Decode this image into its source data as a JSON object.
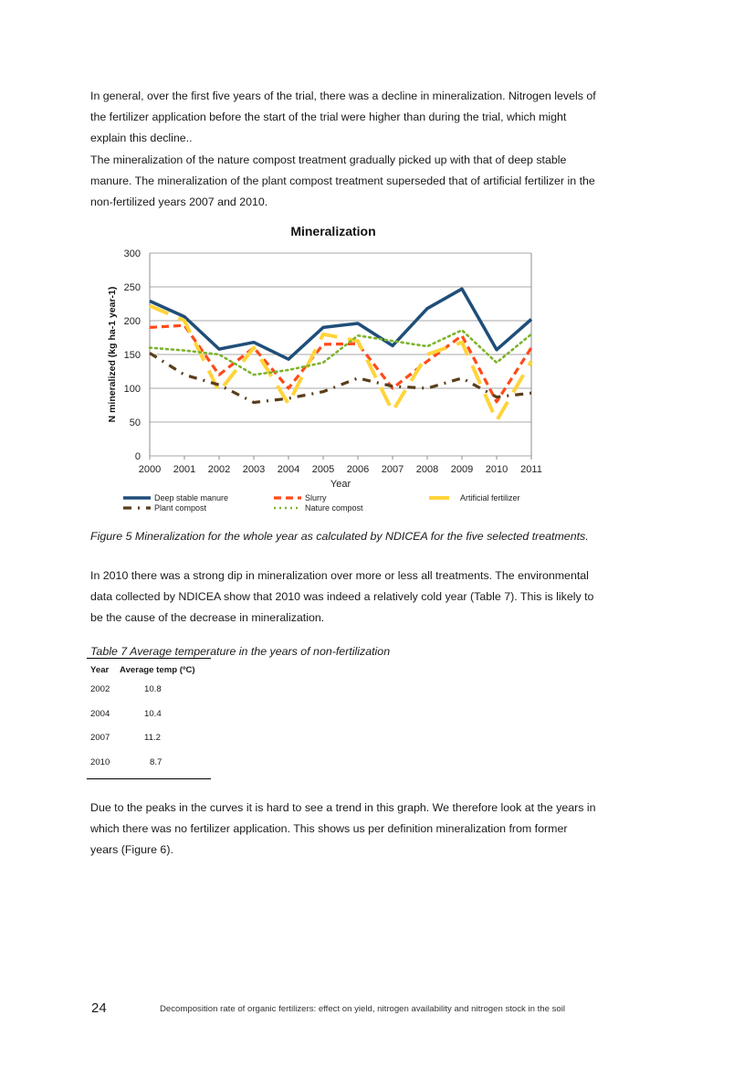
{
  "paragraphs": {
    "p1_l1": "In general, over the first five years of the trial, there was a decline in mineralization. Nitrogen levels of",
    "p1_l2": "the fertilizer application before the start of the trial were higher than during the trial, which might",
    "p1_l3": "explain this decline..",
    "p2_l1": "The mineralization of the nature compost treatment gradually picked up with that of deep stable",
    "p2_l2": "manure. The mineralization of the plant compost treatment superseded that of artificial fertilizer in the",
    "p2_l3": "non-fertilized years 2007 and 2010.",
    "p3_l1": "In 2010 there was a strong dip in mineralization over more or less all treatments. The environmental",
    "p3_l2": "data collected by NDICEA show that 2010 was indeed a relatively cold year (Table 7). This is likely to",
    "p3_l3": "be the cause of the decrease in mineralization.",
    "p4_l1": "Due to the peaks in the curves it is hard to see a trend in this graph. We therefore look at the years in",
    "p4_l2": "which there was no fertilizer application. This shows us per definition mineralization from former",
    "p4_l3": "years (Figure 6)."
  },
  "figure_caption": "Figure 5 Mineralization for the whole year as calculated by NDICEA for the five selected treatments.",
  "table": {
    "caption": "Table 7 Average temperature in the years of non-fertilization",
    "headers": [
      "Year",
      "Average temp (ºC)"
    ],
    "rows": [
      [
        "2002",
        "10.8"
      ],
      [
        "2004",
        "10.4"
      ],
      [
        "2007",
        "11.2"
      ],
      [
        "2010",
        "8.7"
      ]
    ]
  },
  "footer": {
    "page_number": "24",
    "running_title": "Decomposition rate of organic fertilizers: effect on yield, nitrogen availability and nitrogen stock in the soil"
  },
  "chart_data": {
    "type": "line",
    "title": "Mineralization",
    "xlabel": "Year",
    "ylabel": "N mineralized (kg ha-1 year-1)",
    "ylim": [
      0,
      300
    ],
    "yticks": [
      "0",
      "50",
      "100",
      "150",
      "200",
      "250",
      "300"
    ],
    "categories": [
      "2000",
      "2001",
      "2002",
      "2003",
      "2004",
      "2005",
      "2006",
      "2007",
      "2008",
      "2009",
      "2010",
      "2011"
    ],
    "grid": true,
    "legend_position": "bottom",
    "series": [
      {
        "name": "Deep stable manure",
        "color": "#1f4e79",
        "dash": "solid",
        "values": [
          229,
          206,
          158,
          168,
          143,
          190,
          196,
          163,
          218,
          247,
          157,
          202
        ]
      },
      {
        "name": "Slurry",
        "color": "#ff4a1a",
        "dash": "dash",
        "values": [
          190,
          193,
          120,
          160,
          100,
          165,
          166,
          100,
          140,
          178,
          80,
          160
        ]
      },
      {
        "name": "Artificial fertilizer",
        "color": "#ffd43b",
        "dash": "longdash",
        "values": [
          222,
          200,
          95,
          160,
          77,
          180,
          170,
          66,
          150,
          168,
          52,
          140
        ]
      },
      {
        "name": "Plant compost",
        "color": "#5a3e1b",
        "dash": "dashdot",
        "values": [
          152,
          120,
          105,
          79,
          85,
          95,
          115,
          103,
          100,
          115,
          87,
          93
        ]
      },
      {
        "name": "Nature compost",
        "color": "#7db32b",
        "dash": "dot",
        "values": [
          160,
          156,
          150,
          120,
          127,
          138,
          178,
          170,
          162,
          186,
          138,
          180
        ]
      }
    ]
  }
}
